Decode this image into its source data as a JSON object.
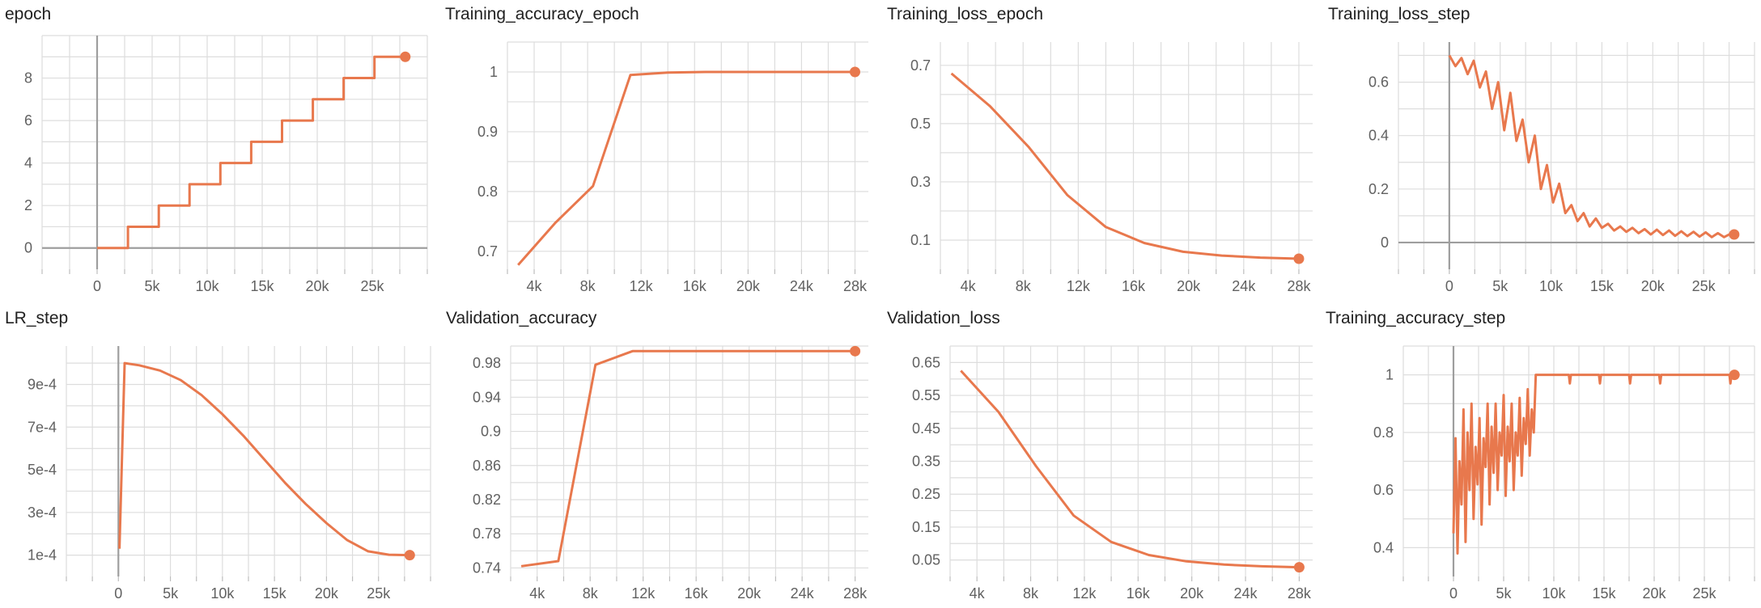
{
  "colors": {
    "line": "#E8784D",
    "grid": "#DDDDDD",
    "axis": "#9E9E9E",
    "text": "#616161"
  },
  "chart_data": [
    {
      "type": "line",
      "title": "epoch",
      "xlim": [
        -5000,
        30000
      ],
      "ylim": [
        -1,
        10
      ],
      "xticks": [
        0,
        5000,
        10000,
        15000,
        20000,
        25000
      ],
      "xtick_labels": [
        "0",
        "5k",
        "10k",
        "15k",
        "20k",
        "25k"
      ],
      "yticks": [
        0,
        2,
        4,
        6,
        8
      ],
      "ytick_labels": [
        "0",
        "2",
        "4",
        "6",
        "8"
      ],
      "zero_axes": true,
      "x": [
        0,
        2800,
        2800,
        5600,
        5600,
        8400,
        8400,
        11200,
        11200,
        14000,
        14000,
        16800,
        16800,
        19600,
        19600,
        22400,
        22400,
        25200,
        25200,
        28000
      ],
      "y": [
        0,
        0,
        1,
        1,
        2,
        2,
        3,
        3,
        4,
        4,
        5,
        5,
        6,
        6,
        7,
        7,
        8,
        8,
        9,
        9
      ]
    },
    {
      "type": "line",
      "title": "Training_accuracy_epoch",
      "xlim": [
        2000,
        29000
      ],
      "ylim": [
        0.67,
        1.05
      ],
      "xticks": [
        4000,
        8000,
        12000,
        16000,
        20000,
        24000,
        28000
      ],
      "xtick_labels": [
        "4k",
        "8k",
        "12k",
        "16k",
        "20k",
        "24k",
        "28k"
      ],
      "yticks": [
        0.7,
        0.8,
        0.9,
        1
      ],
      "ytick_labels": [
        "0.7",
        "0.8",
        "0.9",
        "1"
      ],
      "zero_axes": false,
      "x": [
        2800,
        5600,
        8400,
        11200,
        14000,
        16800,
        19600,
        22400,
        25200,
        28000
      ],
      "y": [
        0.677,
        0.748,
        0.809,
        0.995,
        0.999,
        1.0,
        1.0,
        1.0,
        1.0,
        1.0
      ]
    },
    {
      "type": "line",
      "title": "Training_loss_epoch",
      "xlim": [
        2000,
        29000
      ],
      "ylim": [
        0.0,
        0.78
      ],
      "xticks": [
        4000,
        8000,
        12000,
        16000,
        20000,
        24000,
        28000
      ],
      "xtick_labels": [
        "4k",
        "8k",
        "12k",
        "16k",
        "20k",
        "24k",
        "28k"
      ],
      "yticks": [
        0.1,
        0.3,
        0.5,
        0.7
      ],
      "ytick_labels": [
        "0.1",
        "0.3",
        "0.5",
        "0.7"
      ],
      "zero_axes": false,
      "x": [
        2800,
        5600,
        8400,
        11200,
        14000,
        16800,
        19600,
        22400,
        25200,
        28000
      ],
      "y": [
        0.672,
        0.56,
        0.42,
        0.255,
        0.145,
        0.09,
        0.06,
        0.047,
        0.04,
        0.036
      ]
    },
    {
      "type": "line",
      "title": "Training_loss_step",
      "xlim": [
        -5000,
        30000
      ],
      "ylim": [
        -0.1,
        0.75
      ],
      "xticks": [
        0,
        5000,
        10000,
        15000,
        20000,
        25000
      ],
      "xtick_labels": [
        "0",
        "5k",
        "10k",
        "15k",
        "20k",
        "25k"
      ],
      "yticks": [
        0,
        0.2,
        0.4,
        0.6
      ],
      "ytick_labels": [
        "0",
        "0.2",
        "0.4",
        "0.6"
      ],
      "zero_axes": true,
      "x": [
        0,
        600,
        1200,
        1800,
        2400,
        3000,
        3600,
        4200,
        4800,
        5400,
        6000,
        6600,
        7200,
        7800,
        8400,
        9000,
        9600,
        10200,
        10800,
        11400,
        12000,
        12600,
        13200,
        13800,
        14400,
        15000,
        15600,
        16200,
        16800,
        17400,
        18000,
        18600,
        19200,
        19800,
        20400,
        21000,
        21600,
        22200,
        22800,
        23400,
        24000,
        24600,
        25200,
        25800,
        26400,
        27000,
        27600,
        28000
      ],
      "y": [
        0.7,
        0.66,
        0.69,
        0.63,
        0.68,
        0.58,
        0.64,
        0.5,
        0.6,
        0.42,
        0.56,
        0.38,
        0.46,
        0.3,
        0.4,
        0.2,
        0.29,
        0.15,
        0.22,
        0.11,
        0.14,
        0.08,
        0.11,
        0.06,
        0.09,
        0.055,
        0.07,
        0.045,
        0.06,
        0.04,
        0.055,
        0.035,
        0.05,
        0.03,
        0.048,
        0.028,
        0.045,
        0.025,
        0.042,
        0.024,
        0.04,
        0.022,
        0.038,
        0.02,
        0.035,
        0.02,
        0.032,
        0.03
      ]
    },
    {
      "type": "line",
      "title": "LR_step",
      "xlim": [
        -5000,
        30000
      ],
      "ylim": [
        0,
        0.00108
      ],
      "xticks": [
        0,
        5000,
        10000,
        15000,
        20000,
        25000
      ],
      "xtick_labels": [
        "0",
        "5k",
        "10k",
        "15k",
        "20k",
        "25k"
      ],
      "yticks": [
        0.0001,
        0.0003,
        0.0005,
        0.0007,
        0.0009
      ],
      "ytick_labels": [
        "1e-4",
        "3e-4",
        "5e-4",
        "7e-4",
        "9e-4"
      ],
      "zero_axes": true,
      "x": [
        100,
        600,
        2000,
        4000,
        6000,
        8000,
        10000,
        12000,
        14000,
        16000,
        18000,
        20000,
        22000,
        24000,
        26000,
        28000
      ],
      "y": [
        0.00013,
        0.001,
        0.00099,
        0.000965,
        0.00092,
        0.00085,
        0.00076,
        0.00066,
        0.00055,
        0.00044,
        0.00034,
        0.00025,
        0.00017,
        0.000118,
        0.000102,
        0.0001
      ]
    },
    {
      "type": "line",
      "title": "Validation_accuracy",
      "xlim": [
        2000,
        29000
      ],
      "ylim": [
        0.73,
        1.0
      ],
      "xticks": [
        4000,
        8000,
        12000,
        16000,
        20000,
        24000,
        28000
      ],
      "xtick_labels": [
        "4k",
        "8k",
        "12k",
        "16k",
        "20k",
        "24k",
        "28k"
      ],
      "yticks": [
        0.74,
        0.78,
        0.82,
        0.86,
        0.9,
        0.94,
        0.98
      ],
      "ytick_labels": [
        "0.74",
        "0.78",
        "0.82",
        "0.86",
        "0.9",
        "0.94",
        "0.98"
      ],
      "zero_axes": false,
      "x": [
        2800,
        5600,
        8400,
        11200,
        14000,
        16800,
        19600,
        22400,
        25200,
        28000
      ],
      "y": [
        0.742,
        0.748,
        0.978,
        0.994,
        0.994,
        0.994,
        0.994,
        0.994,
        0.994,
        0.994
      ]
    },
    {
      "type": "line",
      "title": "Validation_loss",
      "xlim": [
        2000,
        29000
      ],
      "ylim": [
        0.0,
        0.7
      ],
      "xticks": [
        4000,
        8000,
        12000,
        16000,
        20000,
        24000,
        28000
      ],
      "xtick_labels": [
        "4k",
        "8k",
        "12k",
        "16k",
        "20k",
        "24k",
        "28k"
      ],
      "yticks": [
        0.05,
        0.15,
        0.25,
        0.35,
        0.45,
        0.55,
        0.65
      ],
      "ytick_labels": [
        "0.05",
        "0.15",
        "0.25",
        "0.35",
        "0.45",
        "0.55",
        "0.65"
      ],
      "zero_axes": false,
      "x": [
        2800,
        5600,
        8400,
        11200,
        14000,
        16800,
        19600,
        22400,
        25200,
        28000
      ],
      "y": [
        0.625,
        0.5,
        0.335,
        0.185,
        0.105,
        0.065,
        0.046,
        0.036,
        0.031,
        0.028
      ]
    },
    {
      "type": "line",
      "title": "Training_accuracy_step",
      "xlim": [
        -5000,
        30000
      ],
      "ylim": [
        0.3,
        1.1
      ],
      "xticks": [
        0,
        5000,
        10000,
        15000,
        20000,
        25000
      ],
      "xtick_labels": [
        "0",
        "5k",
        "10k",
        "15k",
        "20k",
        "25k"
      ],
      "yticks": [
        0.4,
        0.6,
        0.8,
        1
      ],
      "ytick_labels": [
        "0.4",
        "0.6",
        "0.8",
        "1"
      ],
      "zero_axes": true,
      "x": [
        0,
        200,
        400,
        600,
        800,
        1000,
        1200,
        1400,
        1600,
        1800,
        2000,
        2200,
        2400,
        2600,
        2800,
        3000,
        3200,
        3400,
        3600,
        3800,
        4000,
        4200,
        4400,
        4600,
        4800,
        5000,
        5200,
        5400,
        5600,
        5800,
        6000,
        6200,
        6400,
        6600,
        6800,
        7000,
        7200,
        7400,
        7600,
        7800,
        8000,
        8200,
        8400,
        9000,
        10000,
        11000,
        11500,
        11600,
        11700,
        13000,
        14000,
        14500,
        14600,
        14700,
        16000,
        17500,
        17600,
        17700,
        20000,
        20500,
        20600,
        20700,
        23000,
        26000,
        27500,
        27600,
        27700,
        28000
      ],
      "y": [
        0.45,
        0.78,
        0.38,
        0.7,
        0.55,
        0.88,
        0.42,
        0.8,
        0.6,
        0.9,
        0.5,
        0.75,
        0.62,
        0.85,
        0.48,
        0.78,
        0.68,
        0.9,
        0.55,
        0.82,
        0.66,
        0.9,
        0.6,
        0.8,
        0.72,
        0.93,
        0.58,
        0.82,
        0.7,
        0.9,
        0.6,
        0.8,
        0.72,
        0.92,
        0.65,
        0.85,
        0.76,
        0.95,
        0.72,
        0.88,
        0.8,
        1.0,
        1.0,
        1.0,
        1.0,
        1.0,
        1.0,
        0.97,
        1.0,
        1.0,
        1.0,
        1.0,
        0.97,
        1.0,
        1.0,
        1.0,
        0.97,
        1.0,
        1.0,
        1.0,
        0.97,
        1.0,
        1.0,
        1.0,
        1.0,
        0.97,
        1.0,
        1.0
      ]
    }
  ]
}
